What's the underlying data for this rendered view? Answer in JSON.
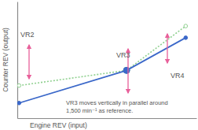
{
  "chart_data": {
    "type": "line",
    "xlabel": "Engine REV (input)",
    "ylabel": "Counter REV (output)",
    "x": [
      1,
      61,
      94
    ],
    "series": [
      {
        "color": "#8fd08f",
        "line_style": "dotted",
        "marker": "open-circle",
        "values": [
          28,
          41,
          79
        ]
      },
      {
        "color": "#3b68c9",
        "line_style": "solid",
        "marker": "circle",
        "values": [
          13,
          41,
          69
        ]
      }
    ],
    "xlim": [
      0,
      100
    ],
    "ylim": [
      0,
      100
    ],
    "tick_labels": false,
    "annotations": [
      "VR2",
      "VR3",
      "VR4",
      "VR3 moves vertically in parallel around",
      "1,500 min⁻¹ as reference."
    ]
  }
}
